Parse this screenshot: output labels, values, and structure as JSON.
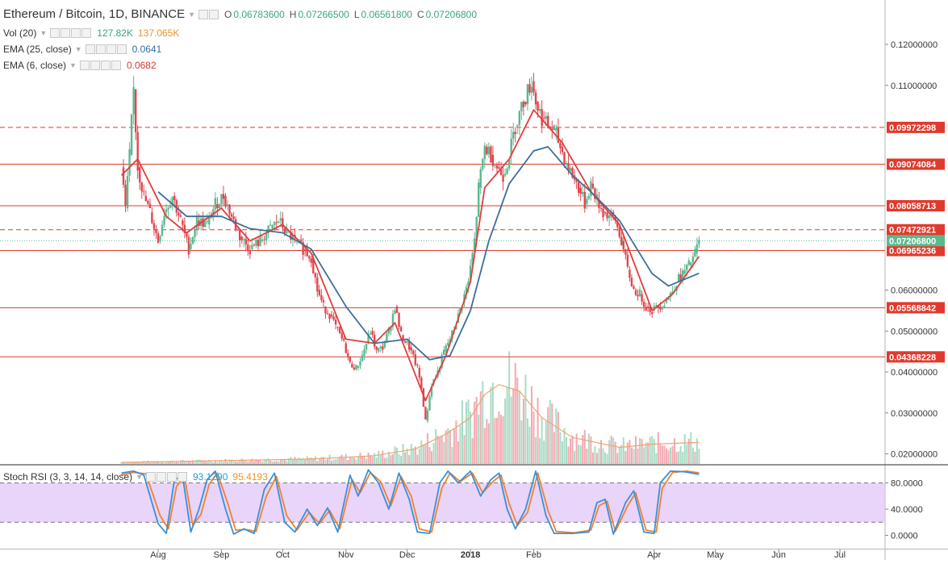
{
  "header": {
    "symbol": "Ethereum / Bitcoin, 1D, BINANCE",
    "ohlc": [
      {
        "k": "O",
        "v": "0.06783600"
      },
      {
        "k": "H",
        "v": "0.07266500"
      },
      {
        "k": "L",
        "v": "0.06561800"
      },
      {
        "k": "C",
        "v": "0.07206800"
      }
    ]
  },
  "indicators": {
    "vol": {
      "label": "Vol (20)",
      "value1": "127.82K",
      "value2": "137.065K"
    },
    "ema25": {
      "label": "EMA (25, close)",
      "value": "0.0641"
    },
    "ema6": {
      "label": "EMA (6, close)",
      "value": "0.0682"
    },
    "stoch": {
      "label": "Stoch RSI (3, 3, 14, 14, close)",
      "k": "93.1290",
      "d": "95.4193"
    }
  },
  "colors": {
    "up": "#5cb88f",
    "down": "#e0464e",
    "ema25": "#3b6f99",
    "ema6": "#e43c3c",
    "vol_up": "#a9dcc5",
    "vol_down": "#f4a9b2",
    "vol_ma": "#f0a36b",
    "stoch_k": "#3a8fd9",
    "stoch_d": "#f0822b",
    "stoch_band": "#e3c9f9",
    "hline": "#e13a2c"
  },
  "chart_data": {
    "type": "candlestick",
    "title": "Ethereum / Bitcoin, 1D, BINANCE",
    "ylim": [
      0.0175,
      0.1285
    ],
    "yticks": [
      {
        "v": 0.02,
        "label": "0.02000000"
      },
      {
        "v": 0.03,
        "label": "0.03000000"
      },
      {
        "v": 0.04,
        "label": "0.04000000"
      },
      {
        "v": 0.05,
        "label": "0.05000000"
      },
      {
        "v": 0.06,
        "label": "0.06000000"
      },
      {
        "v": 0.11,
        "label": "0.11000000"
      },
      {
        "v": 0.12,
        "label": "0.12000000"
      }
    ],
    "xticks": [
      {
        "date": "2017-08-01",
        "label": "Aug"
      },
      {
        "date": "2017-09-01",
        "label": "Sep"
      },
      {
        "date": "2017-10-01",
        "label": "Oct"
      },
      {
        "date": "2017-11-01",
        "label": "Nov"
      },
      {
        "date": "2017-12-01",
        "label": "Dec"
      },
      {
        "date": "2018-01-01",
        "label": "2018"
      },
      {
        "date": "2018-02-01",
        "label": "Feb"
      },
      {
        "date": "2018-04-01",
        "label": "Apr"
      },
      {
        "date": "2018-05-01",
        "label": "May"
      },
      {
        "date": "2018-06-01",
        "label": "Jun"
      },
      {
        "date": "2018-07-01",
        "label": "Jul"
      }
    ],
    "horizontal_levels": [
      {
        "value": 0.09972298,
        "label": "0.09972298",
        "style": "dashed"
      },
      {
        "value": 0.09074084,
        "label": "0.09074084",
        "style": "solid"
      },
      {
        "value": 0.08058713,
        "label": "0.08058713",
        "style": "solid"
      },
      {
        "value": 0.07472921,
        "label": "0.07472921",
        "style": "dashed"
      },
      {
        "value": 0.06965236,
        "label": "0.06965236",
        "style": "solid"
      },
      {
        "value": 0.05568842,
        "label": "0.05568842",
        "style": "solid"
      },
      {
        "value": 0.04368228,
        "label": "0.04368228",
        "style": "solid"
      }
    ],
    "last_price": {
      "value": 0.072068,
      "label": "0.07206800"
    },
    "price_path": [
      [
        "2017-07-14",
        0.09
      ],
      [
        "2017-07-16",
        0.08
      ],
      [
        "2017-07-18",
        0.093
      ],
      [
        "2017-07-20",
        0.109
      ],
      [
        "2017-07-22",
        0.09
      ],
      [
        "2017-07-25",
        0.083
      ],
      [
        "2017-07-28",
        0.079
      ],
      [
        "2017-08-01",
        0.072
      ],
      [
        "2017-08-04",
        0.079
      ],
      [
        "2017-08-08",
        0.083
      ],
      [
        "2017-08-12",
        0.077
      ],
      [
        "2017-08-16",
        0.07
      ],
      [
        "2017-08-20",
        0.077
      ],
      [
        "2017-08-25",
        0.076
      ],
      [
        "2017-08-29",
        0.081
      ],
      [
        "2017-09-02",
        0.083
      ],
      [
        "2017-09-06",
        0.078
      ],
      [
        "2017-09-10",
        0.073
      ],
      [
        "2017-09-15",
        0.07
      ],
      [
        "2017-09-20",
        0.072
      ],
      [
        "2017-09-25",
        0.075
      ],
      [
        "2017-09-29",
        0.077
      ],
      [
        "2017-10-03",
        0.074
      ],
      [
        "2017-10-07",
        0.072
      ],
      [
        "2017-10-11",
        0.07
      ],
      [
        "2017-10-15",
        0.068
      ],
      [
        "2017-10-18",
        0.06
      ],
      [
        "2017-10-21",
        0.056
      ],
      [
        "2017-10-24",
        0.054
      ],
      [
        "2017-10-27",
        0.051
      ],
      [
        "2017-10-31",
        0.047
      ],
      [
        "2017-11-03",
        0.042
      ],
      [
        "2017-11-06",
        0.041
      ],
      [
        "2017-11-09",
        0.044
      ],
      [
        "2017-11-13",
        0.05
      ],
      [
        "2017-11-16",
        0.045
      ],
      [
        "2017-11-19",
        0.046
      ],
      [
        "2017-11-22",
        0.05
      ],
      [
        "2017-11-25",
        0.056
      ],
      [
        "2017-11-28",
        0.049
      ],
      [
        "2017-12-02",
        0.046
      ],
      [
        "2017-12-06",
        0.041
      ],
      [
        "2017-12-08",
        0.036
      ],
      [
        "2017-12-10",
        0.028
      ],
      [
        "2017-12-13",
        0.037
      ],
      [
        "2017-12-16",
        0.04
      ],
      [
        "2017-12-19",
        0.045
      ],
      [
        "2017-12-22",
        0.048
      ],
      [
        "2017-12-25",
        0.052
      ],
      [
        "2017-12-28",
        0.057
      ],
      [
        "2017-12-31",
        0.062
      ],
      [
        "2018-01-03",
        0.072
      ],
      [
        "2018-01-05",
        0.085
      ],
      [
        "2018-01-08",
        0.095
      ],
      [
        "2018-01-11",
        0.093
      ],
      [
        "2018-01-14",
        0.09
      ],
      [
        "2018-01-17",
        0.088
      ],
      [
        "2018-01-20",
        0.093
      ],
      [
        "2018-01-23",
        0.1
      ],
      [
        "2018-01-27",
        0.106
      ],
      [
        "2018-01-31",
        0.111
      ],
      [
        "2018-02-02",
        0.106
      ],
      [
        "2018-02-05",
        0.102
      ],
      [
        "2018-02-08",
        0.1
      ],
      [
        "2018-02-11",
        0.099
      ],
      [
        "2018-02-14",
        0.095
      ],
      [
        "2018-02-17",
        0.091
      ],
      [
        "2018-02-20",
        0.088
      ],
      [
        "2018-02-23",
        0.085
      ],
      [
        "2018-02-26",
        0.081
      ],
      [
        "2018-03-01",
        0.086
      ],
      [
        "2018-03-04",
        0.082
      ],
      [
        "2018-03-07",
        0.079
      ],
      [
        "2018-03-10",
        0.078
      ],
      [
        "2018-03-13",
        0.077
      ],
      [
        "2018-03-16",
        0.072
      ],
      [
        "2018-03-19",
        0.065
      ],
      [
        "2018-03-22",
        0.06
      ],
      [
        "2018-03-25",
        0.059
      ],
      [
        "2018-03-28",
        0.056
      ],
      [
        "2018-03-31",
        0.055
      ],
      [
        "2018-04-03",
        0.056
      ],
      [
        "2018-04-06",
        0.057
      ],
      [
        "2018-04-09",
        0.059
      ],
      [
        "2018-04-12",
        0.062
      ],
      [
        "2018-04-15",
        0.064
      ],
      [
        "2018-04-18",
        0.066
      ],
      [
        "2018-04-21",
        0.069
      ],
      [
        "2018-04-23",
        0.0721
      ]
    ],
    "ema25_path": [
      [
        "2017-08-01",
        0.084
      ],
      [
        "2017-08-15",
        0.078
      ],
      [
        "2017-09-01",
        0.078
      ],
      [
        "2017-09-15",
        0.075
      ],
      [
        "2017-10-01",
        0.074
      ],
      [
        "2017-10-15",
        0.07
      ],
      [
        "2017-11-01",
        0.056
      ],
      [
        "2017-11-15",
        0.047
      ],
      [
        "2017-12-01",
        0.048
      ],
      [
        "2017-12-12",
        0.043
      ],
      [
        "2017-12-22",
        0.044
      ],
      [
        "2018-01-01",
        0.055
      ],
      [
        "2018-01-10",
        0.072
      ],
      [
        "2018-01-20",
        0.086
      ],
      [
        "2018-02-01",
        0.094
      ],
      [
        "2018-02-08",
        0.095
      ],
      [
        "2018-02-20",
        0.088
      ],
      [
        "2018-03-01",
        0.084
      ],
      [
        "2018-03-15",
        0.077
      ],
      [
        "2018-03-31",
        0.064
      ],
      [
        "2018-04-08",
        0.061
      ],
      [
        "2018-04-23",
        0.0641
      ]
    ],
    "ema6_path": [
      [
        "2017-07-14",
        0.088
      ],
      [
        "2017-07-22",
        0.092
      ],
      [
        "2017-08-05",
        0.078
      ],
      [
        "2017-08-15",
        0.074
      ],
      [
        "2017-09-01",
        0.08
      ],
      [
        "2017-09-15",
        0.072
      ],
      [
        "2017-10-01",
        0.076
      ],
      [
        "2017-10-15",
        0.069
      ],
      [
        "2017-11-01",
        0.048
      ],
      [
        "2017-11-15",
        0.047
      ],
      [
        "2017-11-25",
        0.052
      ],
      [
        "2017-12-10",
        0.033
      ],
      [
        "2017-12-20",
        0.044
      ],
      [
        "2018-01-01",
        0.062
      ],
      [
        "2018-01-08",
        0.085
      ],
      [
        "2018-01-20",
        0.092
      ],
      [
        "2018-02-01",
        0.104
      ],
      [
        "2018-02-15",
        0.096
      ],
      [
        "2018-03-01",
        0.084
      ],
      [
        "2018-03-15",
        0.076
      ],
      [
        "2018-03-31",
        0.055
      ],
      [
        "2018-04-10",
        0.059
      ],
      [
        "2018-04-23",
        0.0682
      ]
    ],
    "volume": {
      "ylim": [
        0,
        35
      ],
      "ma_path": [
        [
          "2017-07-14",
          0.5
        ],
        [
          "2017-09-01",
          1.0
        ],
        [
          "2017-10-15",
          1.5
        ],
        [
          "2017-11-15",
          2.5
        ],
        [
          "2017-12-05",
          4.5
        ],
        [
          "2017-12-20",
          9.0
        ],
        [
          "2018-01-01",
          14.0
        ],
        [
          "2018-01-08",
          21.0
        ],
        [
          "2018-01-15",
          24.0
        ],
        [
          "2018-01-25",
          22.0
        ],
        [
          "2018-02-05",
          14.0
        ],
        [
          "2018-02-20",
          8.0
        ],
        [
          "2018-03-15",
          5.0
        ],
        [
          "2018-04-01",
          6.0
        ],
        [
          "2018-04-23",
          6.5
        ]
      ]
    },
    "stoch_rsi": {
      "ylim": [
        0,
        100
      ],
      "yticks": [
        {
          "v": 0,
          "label": "0.0000"
        },
        {
          "v": 40,
          "label": "40.0000"
        },
        {
          "v": 80,
          "label": "80.0000"
        }
      ],
      "band": [
        20,
        80
      ],
      "k_path": [
        [
          "2017-07-14",
          95
        ],
        [
          "2017-07-20",
          98
        ],
        [
          "2017-07-25",
          92
        ],
        [
          "2017-08-01",
          18
        ],
        [
          "2017-08-05",
          3
        ],
        [
          "2017-08-09",
          85
        ],
        [
          "2017-08-13",
          90
        ],
        [
          "2017-08-17",
          5
        ],
        [
          "2017-08-21",
          40
        ],
        [
          "2017-08-25",
          85
        ],
        [
          "2017-08-29",
          98
        ],
        [
          "2017-09-03",
          40
        ],
        [
          "2017-09-07",
          2
        ],
        [
          "2017-09-12",
          10
        ],
        [
          "2017-09-17",
          3
        ],
        [
          "2017-09-22",
          70
        ],
        [
          "2017-09-27",
          95
        ],
        [
          "2017-10-02",
          20
        ],
        [
          "2017-10-07",
          5
        ],
        [
          "2017-10-13",
          40
        ],
        [
          "2017-10-18",
          15
        ],
        [
          "2017-10-23",
          42
        ],
        [
          "2017-10-28",
          5
        ],
        [
          "2017-11-03",
          92
        ],
        [
          "2017-11-07",
          60
        ],
        [
          "2017-11-12",
          100
        ],
        [
          "2017-11-17",
          80
        ],
        [
          "2017-11-22",
          40
        ],
        [
          "2017-11-27",
          95
        ],
        [
          "2017-12-02",
          55
        ],
        [
          "2017-12-06",
          5
        ],
        [
          "2017-12-12",
          3
        ],
        [
          "2017-12-17",
          80
        ],
        [
          "2017-12-21",
          98
        ],
        [
          "2017-12-26",
          80
        ],
        [
          "2018-01-01",
          98
        ],
        [
          "2018-01-06",
          60
        ],
        [
          "2018-01-11",
          85
        ],
        [
          "2018-01-15",
          95
        ],
        [
          "2018-01-19",
          40
        ],
        [
          "2018-01-23",
          10
        ],
        [
          "2018-01-28",
          40
        ],
        [
          "2018-02-02",
          98
        ],
        [
          "2018-02-07",
          30
        ],
        [
          "2018-02-11",
          3
        ],
        [
          "2018-02-20",
          3
        ],
        [
          "2018-02-28",
          5
        ],
        [
          "2018-03-04",
          50
        ],
        [
          "2018-03-08",
          55
        ],
        [
          "2018-03-12",
          2
        ],
        [
          "2018-03-18",
          50
        ],
        [
          "2018-03-22",
          68
        ],
        [
          "2018-03-27",
          5
        ],
        [
          "2018-04-01",
          3
        ],
        [
          "2018-04-04",
          80
        ],
        [
          "2018-04-09",
          98
        ],
        [
          "2018-04-16",
          97
        ],
        [
          "2018-04-23",
          93
        ]
      ],
      "d_path": [
        [
          "2017-07-14",
          92
        ],
        [
          "2017-07-20",
          96
        ],
        [
          "2017-07-26",
          94
        ],
        [
          "2017-08-02",
          30
        ],
        [
          "2017-08-06",
          10
        ],
        [
          "2017-08-10",
          75
        ],
        [
          "2017-08-14",
          88
        ],
        [
          "2017-08-18",
          15
        ],
        [
          "2017-08-22",
          32
        ],
        [
          "2017-08-26",
          78
        ],
        [
          "2017-08-30",
          95
        ],
        [
          "2017-09-04",
          50
        ],
        [
          "2017-09-08",
          8
        ],
        [
          "2017-09-13",
          9
        ],
        [
          "2017-09-18",
          6
        ],
        [
          "2017-09-23",
          60
        ],
        [
          "2017-09-28",
          90
        ],
        [
          "2017-10-03",
          30
        ],
        [
          "2017-10-08",
          8
        ],
        [
          "2017-10-14",
          35
        ],
        [
          "2017-10-19",
          18
        ],
        [
          "2017-10-24",
          38
        ],
        [
          "2017-10-29",
          10
        ],
        [
          "2017-11-04",
          85
        ],
        [
          "2017-11-08",
          65
        ],
        [
          "2017-11-13",
          96
        ],
        [
          "2017-11-18",
          82
        ],
        [
          "2017-11-23",
          45
        ],
        [
          "2017-11-28",
          90
        ],
        [
          "2017-12-03",
          60
        ],
        [
          "2017-12-07",
          10
        ],
        [
          "2017-12-13",
          5
        ],
        [
          "2017-12-18",
          72
        ],
        [
          "2017-12-22",
          95
        ],
        [
          "2017-12-27",
          82
        ],
        [
          "2018-01-02",
          95
        ],
        [
          "2018-01-07",
          65
        ],
        [
          "2018-01-12",
          82
        ],
        [
          "2018-01-16",
          92
        ],
        [
          "2018-01-20",
          48
        ],
        [
          "2018-01-24",
          15
        ],
        [
          "2018-01-29",
          35
        ],
        [
          "2018-02-03",
          95
        ],
        [
          "2018-02-08",
          38
        ],
        [
          "2018-02-12",
          6
        ],
        [
          "2018-02-21",
          4
        ],
        [
          "2018-03-01",
          8
        ],
        [
          "2018-03-05",
          45
        ],
        [
          "2018-03-09",
          52
        ],
        [
          "2018-03-13",
          6
        ],
        [
          "2018-03-19",
          45
        ],
        [
          "2018-03-23",
          65
        ],
        [
          "2018-03-28",
          8
        ],
        [
          "2018-04-02",
          5
        ],
        [
          "2018-04-05",
          72
        ],
        [
          "2018-04-10",
          96
        ],
        [
          "2018-04-17",
          98
        ],
        [
          "2018-04-23",
          95.4
        ]
      ]
    }
  }
}
